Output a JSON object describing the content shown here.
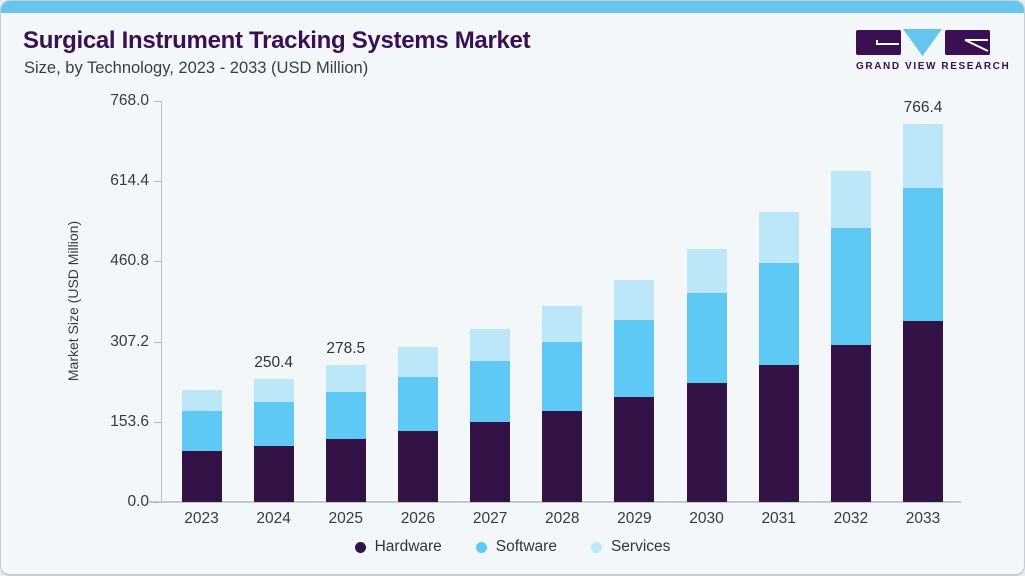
{
  "header": {
    "title": "Surgical Instrument Tracking Systems Market",
    "subtitle": "Size, by Technology, 2023 - 2033 (USD Million)",
    "logo_text": "GRAND VIEW RESEARCH"
  },
  "colors": {
    "top_bar": "#66c5ee",
    "title": "#3a1053",
    "background": "#f3f7fa",
    "hardware": "#331246",
    "software": "#5ec9f4",
    "services": "#bce7f8",
    "axis": "#b9c2c9",
    "tick_text": "#3a3a3a"
  },
  "chart_data": {
    "type": "bar",
    "stacked": true,
    "title": "Surgical Instrument Tracking Systems Market Size, by Technology, 2023 - 2033 (USD Million)",
    "xlabel": "",
    "ylabel": "Market Size (USD Million)",
    "ylim": [
      0,
      768
    ],
    "yticks": [
      "768.0",
      "614.4",
      "460.8",
      "307.2",
      "153.6",
      "0.0"
    ],
    "ytick_values": [
      768.0,
      614.4,
      460.8,
      307.2,
      153.6,
      0.0
    ],
    "grid": false,
    "legend_position": "bottom",
    "categories": [
      "2023",
      "2024",
      "2025",
      "2026",
      "2027",
      "2028",
      "2029",
      "2030",
      "2031",
      "2032",
      "2033"
    ],
    "series": [
      {
        "name": "Hardware",
        "color": "#331246",
        "values": [
          103.2,
          113.9,
          127.3,
          144.3,
          162.5,
          184.8,
          213.1,
          242.2,
          277.2,
          319.1,
          366.9
        ]
      },
      {
        "name": "Software",
        "color": "#5ec9f4",
        "values": [
          80.9,
          89.1,
          95.1,
          109.2,
          122.8,
          140.4,
          156.6,
          181.3,
          207.8,
          235.9,
          269.9
        ]
      },
      {
        "name": "Services",
        "color": "#bce7f8",
        "values": [
          43.9,
          47.4,
          56.1,
          60.1,
          65.4,
          72.0,
          80.9,
          89.9,
          103.8,
          116.2,
          129.6
        ]
      }
    ],
    "totals_estimated": [
      228.0,
      250.4,
      278.5,
      313.6,
      350.7,
      397.2,
      450.6,
      513.4,
      588.8,
      671.2,
      766.4
    ],
    "bar_labels": {
      "2024": "250.4",
      "2025": "278.5",
      "2033": "766.4"
    },
    "legend": [
      "Hardware",
      "Software",
      "Services"
    ]
  }
}
